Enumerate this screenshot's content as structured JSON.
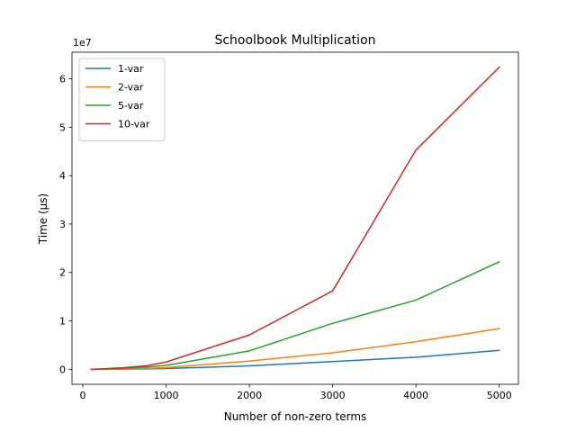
{
  "chart_data": {
    "type": "line",
    "title": "Schoolbook Multiplication",
    "xlabel": "Number of non-zero terms",
    "ylabel": "Time (µs)",
    "y_offset_label": "1e7",
    "xlim": [
      -130,
      5230
    ],
    "ylim": [
      -3100000,
      65500000
    ],
    "x_ticks": [
      0,
      1000,
      2000,
      3000,
      4000,
      5000
    ],
    "x_tick_labels": [
      "0",
      "1000",
      "2000",
      "3000",
      "4000",
      "5000"
    ],
    "y_ticks": [
      0,
      10000000,
      20000000,
      30000000,
      40000000,
      50000000,
      60000000
    ],
    "y_tick_labels": [
      "0",
      "1",
      "2",
      "3",
      "4",
      "5",
      "6"
    ],
    "grid": false,
    "legend_position": "top-left",
    "x": [
      100,
      250,
      500,
      750,
      1000,
      2000,
      3000,
      4000,
      5000
    ],
    "series": [
      {
        "name": "1-var",
        "color": "#1f77b4",
        "values": [
          0,
          10000,
          40000,
          80000,
          150000,
          700000,
          1600000,
          2500000,
          3900000
        ]
      },
      {
        "name": "2-var",
        "color": "#ff7f0e",
        "values": [
          0,
          20000,
          80000,
          180000,
          350000,
          1700000,
          3400000,
          5700000,
          8400000
        ]
      },
      {
        "name": "5-var",
        "color": "#2ca02c",
        "values": [
          0,
          50000,
          200000,
          450000,
          800000,
          3800000,
          9500000,
          14300000,
          22200000
        ]
      },
      {
        "name": "10-var",
        "color": "#d62728",
        "values": [
          0,
          100000,
          350000,
          700000,
          1500000,
          7100000,
          16200000,
          45300000,
          62400000
        ]
      }
    ]
  }
}
